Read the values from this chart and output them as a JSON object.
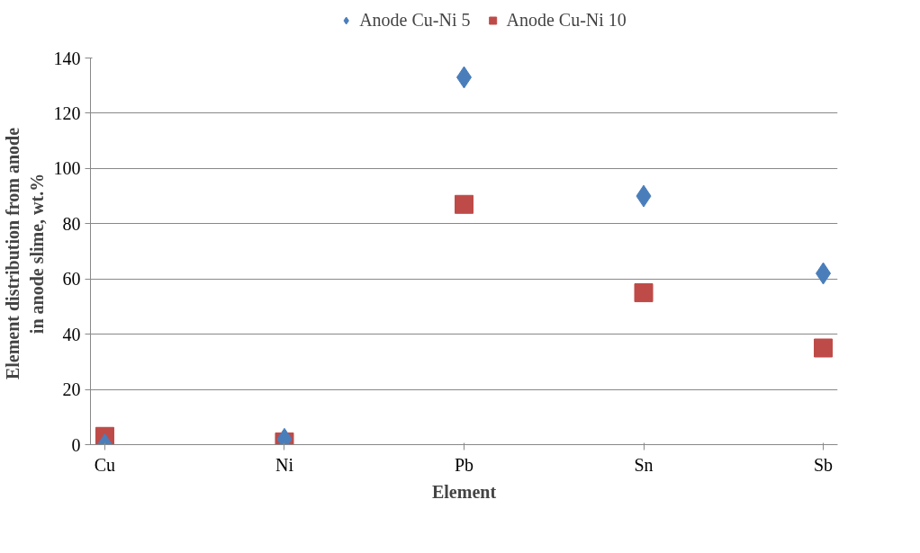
{
  "chart_data": {
    "type": "scatter",
    "xlabel": "Element",
    "ylabel": "Element distribution  from anode in anode slime,  wt.%",
    "categories": [
      "Cu",
      "Ni",
      "Pb",
      "Sn",
      "Sb"
    ],
    "series": [
      {
        "name": "Anode Cu-Ni 5",
        "color": "#4a7ebb",
        "marker": "diamond",
        "values": [
          0,
          2,
          133,
          90,
          62
        ]
      },
      {
        "name": "Anode Cu-Ni 10",
        "color": "#be4b48",
        "marker": "square",
        "values": [
          3,
          1,
          87,
          55,
          35
        ]
      }
    ],
    "ylim": [
      0,
      140
    ],
    "yticks": [
      0,
      20,
      40,
      60,
      80,
      100,
      120,
      140
    ],
    "grid": "y",
    "legend": "top"
  }
}
